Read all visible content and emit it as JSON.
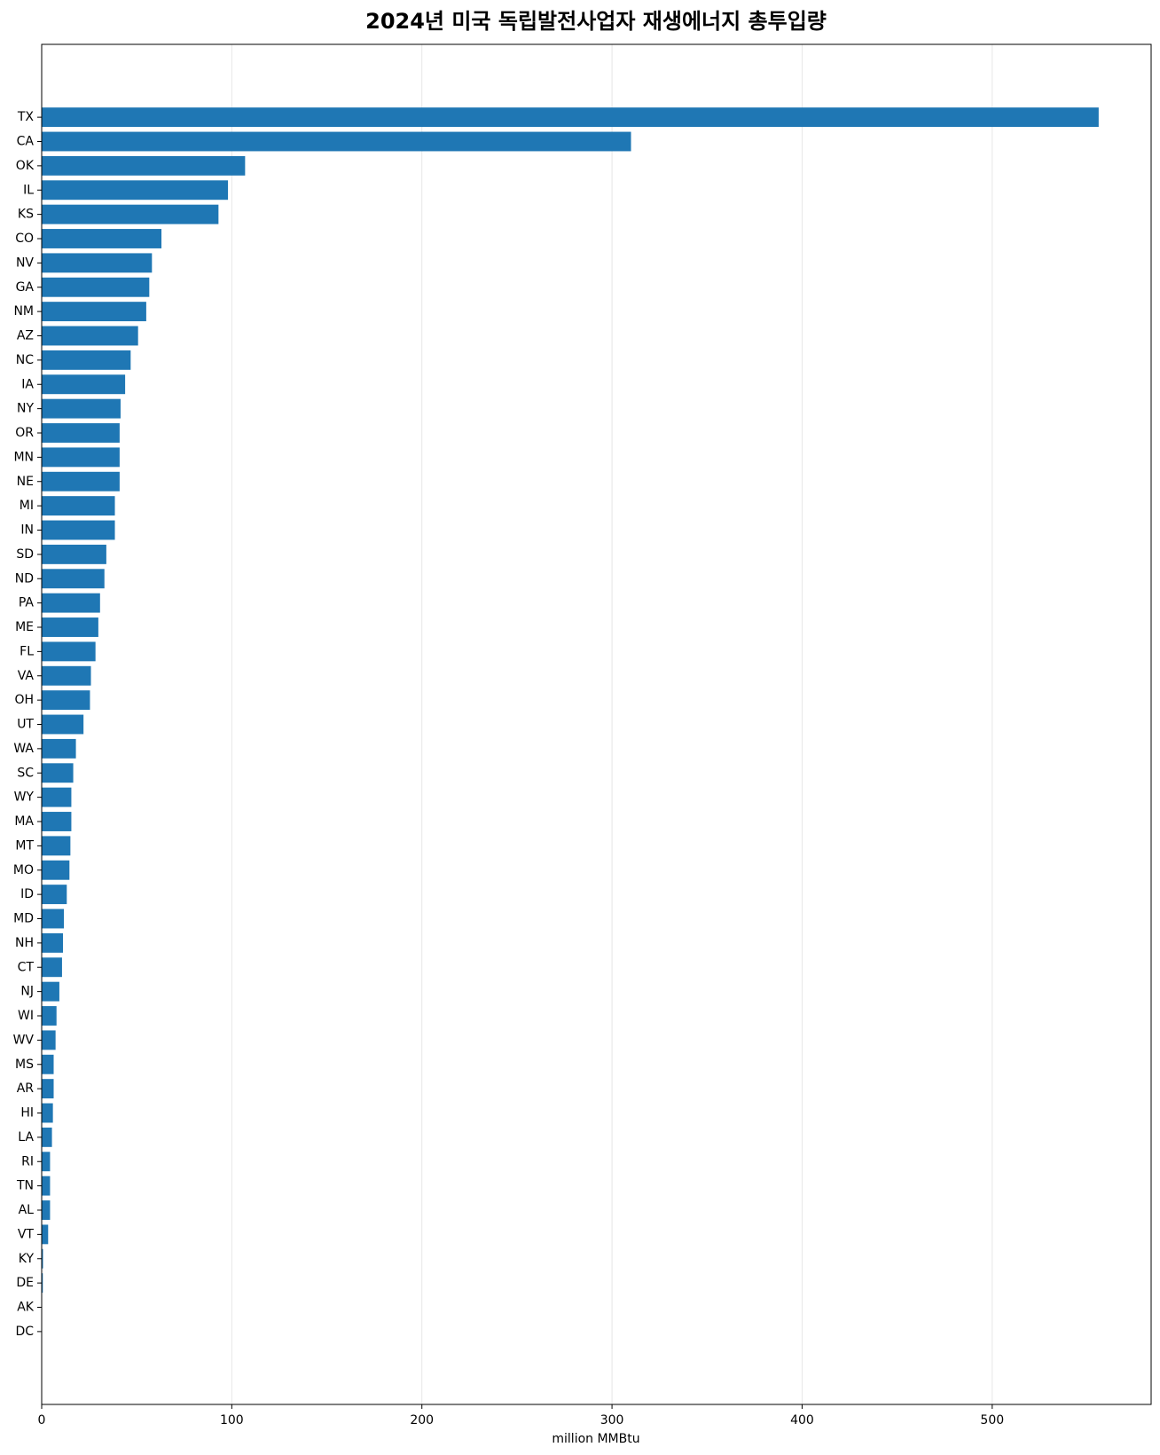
{
  "chart_data": {
    "type": "barh",
    "title": "2024년 미국 독립발전사업자 재생에너지 총투입량",
    "x_label": "million MMBtu",
    "categories": [
      "TX",
      "CA",
      "OK",
      "IL",
      "KS",
      "CO",
      "NV",
      "GA",
      "NM",
      "AZ",
      "NC",
      "IA",
      "NY",
      "OR",
      "MN",
      "NE",
      "MI",
      "IN",
      "SD",
      "ND",
      "PA",
      "ME",
      "FL",
      "VA",
      "OH",
      "UT",
      "WA",
      "SC",
      "WY",
      "MA",
      "MT",
      "MO",
      "ID",
      "MD",
      "NH",
      "CT",
      "NJ",
      "WI",
      "WV",
      "MS",
      "AR",
      "HI",
      "LA",
      "RI",
      "TN",
      "AL",
      "VT",
      "KY",
      "DE",
      "AK",
      "DC"
    ],
    "values": [
      556,
      310,
      107,
      98,
      93,
      63,
      58,
      56.6,
      55,
      50.7,
      46.8,
      43.9,
      41.5,
      41,
      41,
      41,
      38.5,
      38.5,
      34,
      33,
      30.7,
      29.8,
      28.3,
      25.9,
      25.4,
      22,
      18,
      16.6,
      15.6,
      15.6,
      15.1,
      14.6,
      13.2,
      11.7,
      11.2,
      10.7,
      9.3,
      7.8,
      7.3,
      6.3,
      6.3,
      5.9,
      5.4,
      4.4,
      4.4,
      4.4,
      3.4,
      0.7,
      0.6,
      0.1,
      0.05
    ],
    "color": "#1f77b4",
    "xlim": [
      0,
      583.6
    ],
    "xticks": [
      0,
      100,
      200,
      300,
      400,
      500
    ],
    "grid": true
  }
}
